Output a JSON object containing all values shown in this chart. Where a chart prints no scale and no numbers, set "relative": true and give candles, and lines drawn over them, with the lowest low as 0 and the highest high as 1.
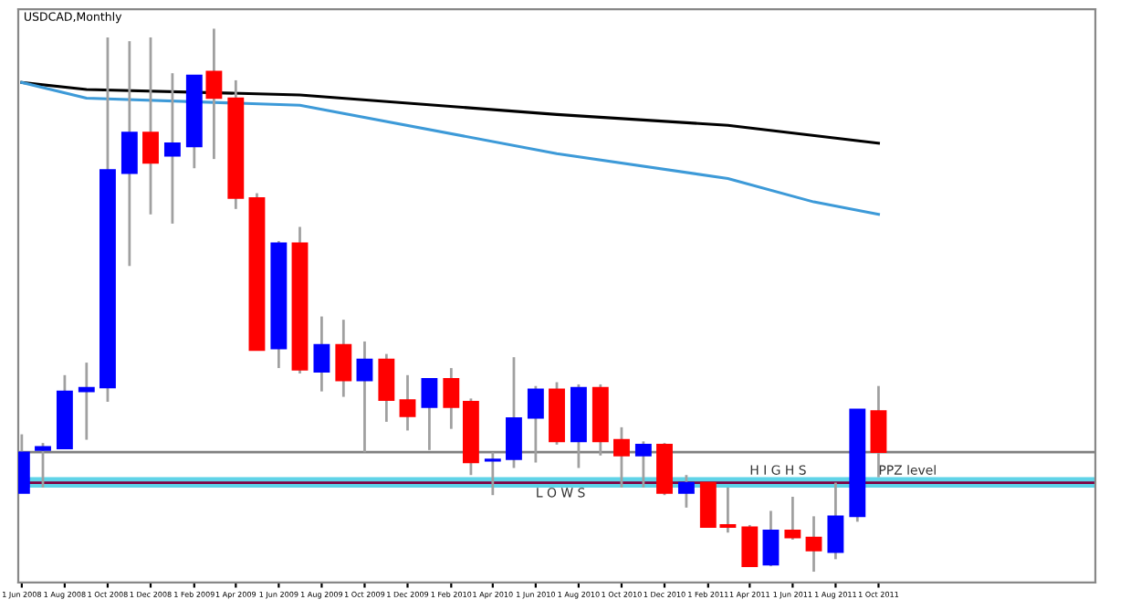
{
  "chart_data": {
    "type": "candlestick",
    "title": "USDCAD,Monthly",
    "relative": true,
    "x": [
      "2008-06",
      "2008-07",
      "2008-08",
      "2008-09",
      "2008-10",
      "2008-11",
      "2008-12",
      "2009-01",
      "2009-02",
      "2009-03",
      "2009-04",
      "2009-05",
      "2009-06",
      "2009-07",
      "2009-08",
      "2009-09",
      "2009-10",
      "2009-11",
      "2009-12",
      "2010-01",
      "2010-02",
      "2010-03",
      "2010-04",
      "2010-05",
      "2010-06",
      "2010-07",
      "2010-08",
      "2010-09",
      "2010-10",
      "2010-11",
      "2010-12",
      "2011-01",
      "2011-02",
      "2011-03",
      "2011-04",
      "2011-05",
      "2011-06",
      "2011-07",
      "2011-08",
      "2011-09",
      "2011-10"
    ],
    "ohlc": [
      [
        0.145,
        0.253,
        0.145,
        0.22
      ],
      [
        0.224,
        0.237,
        0.155,
        0.23
      ],
      [
        0.227,
        0.362,
        0.227,
        0.332
      ],
      [
        0.332,
        0.385,
        0.243,
        0.339
      ],
      [
        0.339,
        0.984,
        0.313,
        0.74
      ],
      [
        0.734,
        0.977,
        0.563,
        0.809
      ],
      [
        0.809,
        0.984,
        0.658,
        0.753
      ],
      [
        0.766,
        0.918,
        0.641,
        0.789
      ],
      [
        0.783,
        0.914,
        0.743,
        0.914
      ],
      [
        0.921,
        1.0,
        0.76,
        0.872
      ],
      [
        0.872,
        0.905,
        0.668,
        0.688
      ],
      [
        0.688,
        0.697,
        0.408,
        0.408
      ],
      [
        0.411,
        0.609,
        0.375,
        0.605
      ],
      [
        0.605,
        0.635,
        0.365,
        0.372
      ],
      [
        0.368,
        0.47,
        0.332,
        0.418
      ],
      [
        0.418,
        0.464,
        0.322,
        0.352
      ],
      [
        0.352,
        0.424,
        0.22,
        0.391
      ],
      [
        0.391,
        0.401,
        0.276,
        0.316
      ],
      [
        0.316,
        0.362,
        0.26,
        0.286
      ],
      [
        0.303,
        0.355,
        0.224,
        0.355
      ],
      [
        0.355,
        0.375,
        0.263,
        0.303
      ],
      [
        0.313,
        0.319,
        0.178,
        0.201
      ],
      [
        0.204,
        0.22,
        0.141,
        0.207
      ],
      [
        0.207,
        0.395,
        0.191,
        0.283
      ],
      [
        0.283,
        0.342,
        0.201,
        0.336
      ],
      [
        0.336,
        0.349,
        0.234,
        0.24
      ],
      [
        0.24,
        0.345,
        0.191,
        0.339
      ],
      [
        0.339,
        0.345,
        0.214,
        0.24
      ],
      [
        0.243,
        0.266,
        0.155,
        0.214
      ],
      [
        0.214,
        0.24,
        0.155,
        0.234
      ],
      [
        0.234,
        0.237,
        0.141,
        0.145
      ],
      [
        0.145,
        0.178,
        0.118,
        0.164
      ],
      [
        0.164,
        0.164,
        0.082,
        0.082
      ],
      [
        0.086,
        0.155,
        0.072,
        0.082
      ],
      [
        0.082,
        0.086,
        0.01,
        0.01
      ],
      [
        0.013,
        0.112,
        0.01,
        0.076
      ],
      [
        0.076,
        0.138,
        0.059,
        0.063
      ],
      [
        0.063,
        0.102,
        0.0,
        0.039
      ],
      [
        0.036,
        0.164,
        0.023,
        0.102
      ],
      [
        0.102,
        0.299,
        0.092,
        0.299
      ],
      [
        0.296,
        0.342,
        0.174,
        0.22
      ]
    ],
    "colors": [
      "#0000ff",
      "#0000ff",
      "#0000ff",
      "#0000ff",
      "#0000ff",
      "#0000ff",
      "#ff0000",
      "#0000ff",
      "#0000ff",
      "#ff0000",
      "#ff0000",
      "#ff0000",
      "#0000ff",
      "#ff0000",
      "#0000ff",
      "#ff0000",
      "#0000ff",
      "#ff0000",
      "#ff0000",
      "#0000ff",
      "#ff0000",
      "#ff0000",
      "#0000ff",
      "#0000ff",
      "#0000ff",
      "#ff0000",
      "#0000ff",
      "#ff0000",
      "#ff0000",
      "#0000ff",
      "#ff0000",
      "#0000ff",
      "#ff0000",
      "#ff0000",
      "#ff0000",
      "#0000ff",
      "#ff0000",
      "#ff0000",
      "#0000ff",
      "#0000ff",
      "#ff0000"
    ],
    "series": [
      {
        "type": "line",
        "color": "#000000",
        "x": [
          "2008-06",
          "2008-09",
          "2009-07",
          "2010-07",
          "2011-03",
          "2011-10"
        ],
        "values": [
          0.901,
          0.888,
          0.878,
          0.842,
          0.822,
          0.789
        ]
      },
      {
        "type": "line",
        "color": "#3d9ad8",
        "x": [
          "2008-06",
          "2008-09",
          "2009-07",
          "2010-07",
          "2011-03",
          "2011-07",
          "2011-10"
        ],
        "values": [
          0.901,
          0.872,
          0.859,
          0.77,
          0.724,
          0.681,
          0.658
        ]
      }
    ],
    "ref_lines": [
      {
        "axis": "y",
        "value": 0.22,
        "color": "#808080"
      },
      {
        "axis": "y",
        "value": 0.164,
        "color": "#800040"
      }
    ],
    "bands": [
      {
        "axis": "y",
        "from": 0.155,
        "to": 0.174,
        "color": "#5fd3e8"
      }
    ],
    "annotations": [
      {
        "text": "L O W S",
        "x": "2010-06",
        "y": 0.155
      },
      {
        "text": "H I G H S",
        "x": "2011-04",
        "y": 0.174
      },
      {
        "text": "PPZ level",
        "x": "2011-10",
        "y": 0.174
      }
    ],
    "xlim": [
      "2008-05-27",
      "2012-08-04"
    ],
    "xticks": [
      {
        "value": "2008-06",
        "label": "1 Jun 2008"
      },
      {
        "value": "2008-08",
        "label": "1 Aug 2008"
      },
      {
        "value": "2008-10",
        "label": "1 Oct 2008"
      },
      {
        "value": "2008-12",
        "label": "1 Dec 2008"
      },
      {
        "value": "2009-02",
        "label": "1 Feb 2009"
      },
      {
        "value": "2009-04",
        "label": "1 Apr 2009"
      },
      {
        "value": "2009-06",
        "label": "1 Jun 2009"
      },
      {
        "value": "2009-08",
        "label": "1 Aug 2009"
      },
      {
        "value": "2009-10",
        "label": "1 Oct 2009"
      },
      {
        "value": "2009-12",
        "label": "1 Dec 2009"
      },
      {
        "value": "2010-02",
        "label": "1 Feb 2010"
      },
      {
        "value": "2010-04",
        "label": "1 Apr 2010"
      },
      {
        "value": "2010-06",
        "label": "1 Jun 2010"
      },
      {
        "value": "2010-08",
        "label": "1 Aug 2010"
      },
      {
        "value": "2010-10",
        "label": "1 Oct 2010"
      },
      {
        "value": "2010-12",
        "label": "1 Dec 2010"
      },
      {
        "value": "2011-02",
        "label": "1 Feb 2011"
      },
      {
        "value": "2011-04",
        "label": "1 Apr 2011"
      },
      {
        "value": "2011-06",
        "label": "1 Jun 2011"
      },
      {
        "value": "2011-08",
        "label": "1 Aug 2011"
      },
      {
        "value": "2011-10",
        "label": "1 Oct 2011"
      }
    ],
    "grid": false,
    "legend": false
  }
}
